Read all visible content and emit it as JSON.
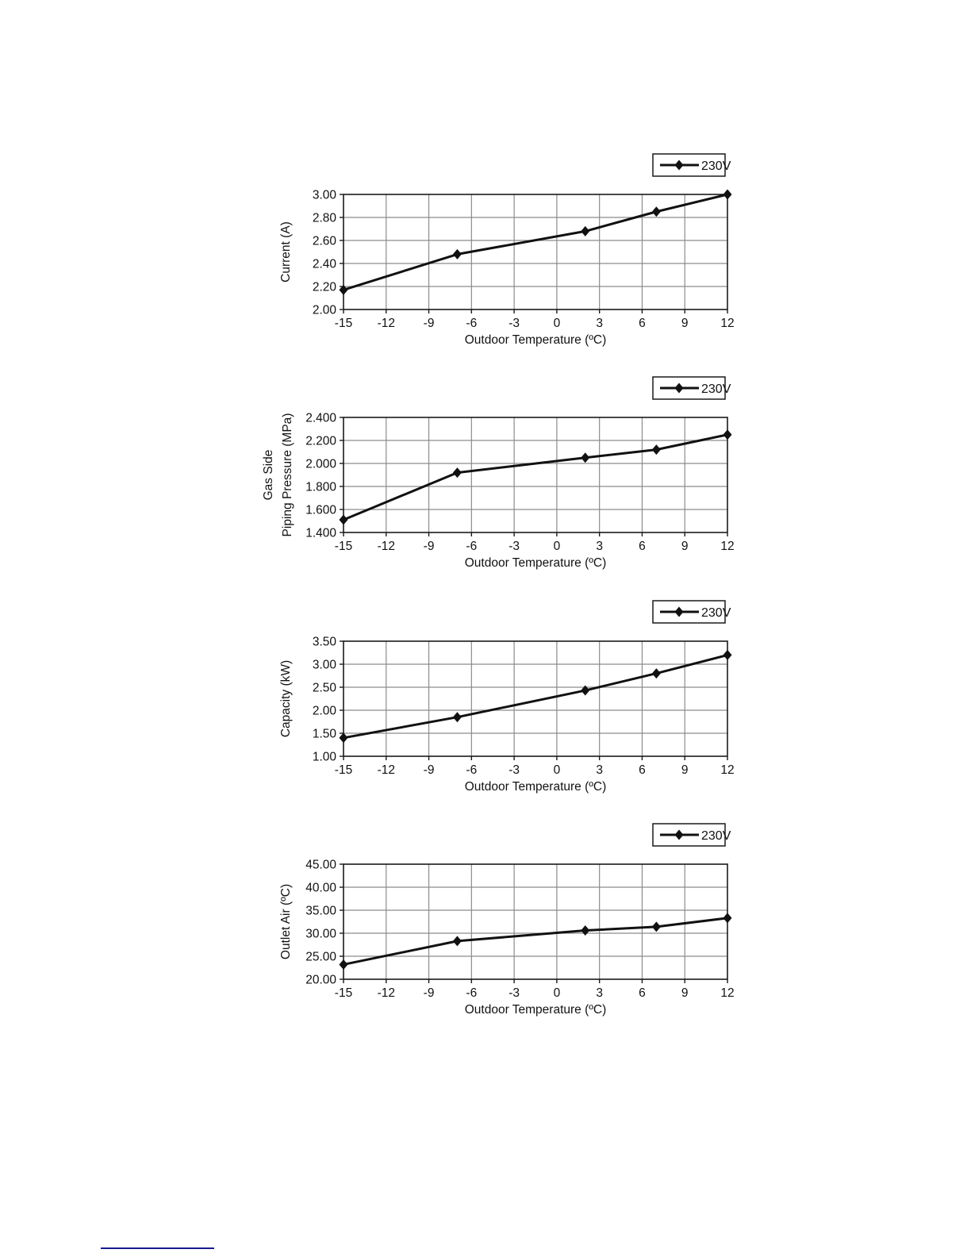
{
  "page": {
    "background": "#ffffff"
  },
  "footer": {
    "rule_color": "#1a1a8f"
  },
  "chart_data": [
    {
      "type": "line",
      "title": "",
      "legend": [
        "230V"
      ],
      "legend_position": "top-right",
      "grid": true,
      "series_color": "#111111",
      "xlabel": "Outdoor Temperature (ºC)",
      "ylabel_lines": [
        "Current (A)"
      ],
      "xlim": [
        -15,
        12
      ],
      "ylim": [
        2.0,
        3.0
      ],
      "xticks": [
        -15,
        -12,
        -9,
        -6,
        -3,
        0,
        3,
        6,
        9,
        12
      ],
      "yticks": [
        3.0,
        2.8,
        2.6,
        2.4,
        2.2,
        2.0
      ],
      "ytick_labels": [
        "3.00",
        "2.80",
        "2.60",
        "2.40",
        "2.20",
        "2.00"
      ],
      "x": [
        -15,
        -7,
        2,
        7,
        12
      ],
      "y": [
        2.17,
        2.48,
        2.68,
        2.85,
        3.0
      ]
    },
    {
      "type": "line",
      "title": "",
      "legend": [
        "230V"
      ],
      "legend_position": "top-right",
      "grid": true,
      "series_color": "#111111",
      "xlabel": "Outdoor Temperature (ºC)",
      "ylabel_lines": [
        "Gas Side",
        "Piping Pressure (MPa)"
      ],
      "xlim": [
        -15,
        12
      ],
      "ylim": [
        1.4,
        2.4
      ],
      "xticks": [
        -15,
        -12,
        -9,
        -6,
        -3,
        0,
        3,
        6,
        9,
        12
      ],
      "yticks": [
        2.4,
        2.2,
        2.0,
        1.8,
        1.6,
        1.4
      ],
      "ytick_labels": [
        "2.400",
        "2.200",
        "2.000",
        "1.800",
        "1.600",
        "1.400"
      ],
      "x": [
        -15,
        -7,
        2,
        7,
        12
      ],
      "y": [
        1.51,
        1.92,
        2.05,
        2.12,
        2.25
      ]
    },
    {
      "type": "line",
      "title": "",
      "legend": [
        "230V"
      ],
      "legend_position": "top-right",
      "grid": true,
      "series_color": "#111111",
      "xlabel": "Outdoor Temperature (ºC)",
      "ylabel_lines": [
        "Capacity (kW)"
      ],
      "xlim": [
        -15,
        12
      ],
      "ylim": [
        1.0,
        3.5
      ],
      "xticks": [
        -15,
        -12,
        -9,
        -6,
        -3,
        0,
        3,
        6,
        9,
        12
      ],
      "yticks": [
        3.5,
        3.0,
        2.5,
        2.0,
        1.5,
        1.0
      ],
      "ytick_labels": [
        "3.50",
        "3.00",
        "2.50",
        "2.00",
        "1.50",
        "1.00"
      ],
      "x": [
        -15,
        -7,
        2,
        7,
        12
      ],
      "y": [
        1.4,
        1.85,
        2.43,
        2.8,
        3.2
      ]
    },
    {
      "type": "line",
      "title": "",
      "legend": [
        "230V"
      ],
      "legend_position": "top-right",
      "grid": true,
      "series_color": "#111111",
      "xlabel": "Outdoor Temperature (ºC)",
      "ylabel_lines": [
        "Outlet Air (ºC)"
      ],
      "xlim": [
        -15,
        12
      ],
      "ylim": [
        20.0,
        45.0
      ],
      "xticks": [
        -15,
        -12,
        -9,
        -6,
        -3,
        0,
        3,
        6,
        9,
        12
      ],
      "yticks": [
        45.0,
        40.0,
        35.0,
        30.0,
        25.0,
        20.0
      ],
      "ytick_labels": [
        "45.00",
        "40.00",
        "35.00",
        "30.00",
        "25.00",
        "20.00"
      ],
      "x": [
        -15,
        -7,
        2,
        7,
        12
      ],
      "y": [
        23.2,
        28.3,
        30.6,
        31.4,
        33.3
      ]
    }
  ]
}
